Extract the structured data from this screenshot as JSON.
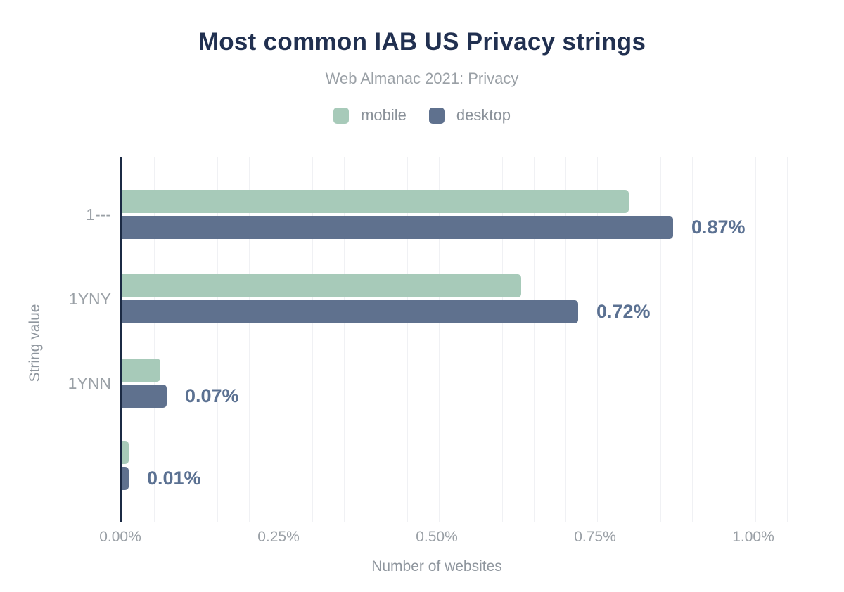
{
  "chart_data": {
    "type": "bar",
    "orientation": "horizontal",
    "title": "Most common IAB US Privacy strings",
    "subtitle": "Web Almanac 2021: Privacy",
    "categories": [
      "1---",
      "1YNY",
      "1YNN",
      ""
    ],
    "series": [
      {
        "name": "mobile",
        "color": "#a7cab9",
        "values": [
          0.8,
          0.63,
          0.06,
          0.01
        ]
      },
      {
        "name": "desktop",
        "color": "#5f718e",
        "values": [
          0.87,
          0.72,
          0.07,
          0.01
        ]
      }
    ],
    "data_labels": {
      "labeled_series": "desktop",
      "values": [
        "0.87%",
        "0.72%",
        "0.07%",
        "0.01%"
      ]
    },
    "xlabel": "Number of websites",
    "ylabel": "String value",
    "unit": "%",
    "xlim": [
      0,
      1.08
    ],
    "x_ticks": [
      {
        "value": 0.0,
        "label": "0.00%"
      },
      {
        "value": 0.25,
        "label": "0.25%"
      },
      {
        "value": 0.5,
        "label": "0.50%"
      },
      {
        "value": 0.75,
        "label": "0.75%"
      },
      {
        "value": 1.0,
        "label": "1.00%"
      }
    ],
    "grid": {
      "show": true,
      "minor_step": 0.05
    },
    "legend_position": "top"
  },
  "colors": {
    "title": "#213050",
    "subtitle": "#9aa0a6",
    "legend_label": "#8a9199",
    "axis_line": "#1b2a44",
    "gridline": "#f0f1f4",
    "tick_label": "#9aa0a6",
    "axis_title": "#8f969e",
    "data_label": "#5b7192",
    "background": "#ffffff"
  }
}
